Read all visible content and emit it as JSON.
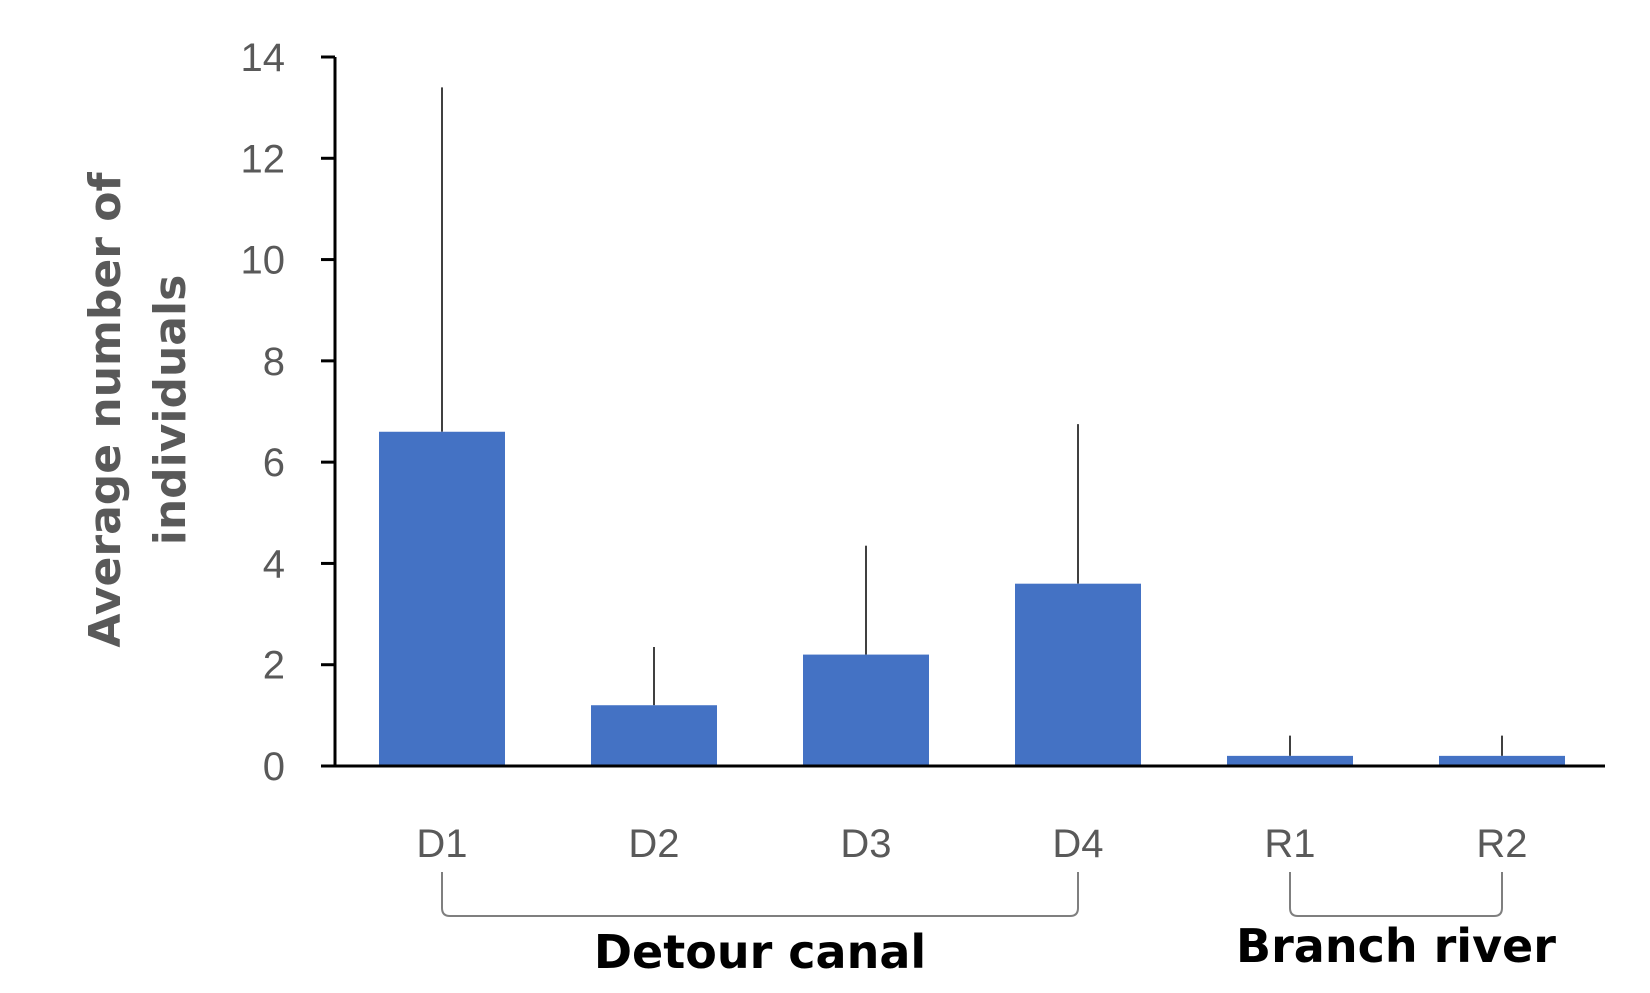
{
  "chart_data": {
    "type": "bar",
    "title": "",
    "xlabel": "",
    "ylabel_lines": [
      "Average number of",
      "individuals"
    ],
    "categories": [
      "D1",
      "D2",
      "D3",
      "D4",
      "R1",
      "R2"
    ],
    "values": [
      6.6,
      1.2,
      2.2,
      3.6,
      0.2,
      0.2
    ],
    "error_upper": [
      13.4,
      2.35,
      4.35,
      6.75,
      0.6,
      0.6
    ],
    "ylim": [
      0,
      14
    ],
    "yticks": [
      0,
      2,
      4,
      6,
      8,
      10,
      12,
      14
    ],
    "grid": false,
    "legend": "none",
    "bar_color": "#4472C4",
    "groups": [
      {
        "label": "Detour canal",
        "from": "D1",
        "to": "D4"
      },
      {
        "label": "Branch river",
        "from": "R1",
        "to": "R2"
      }
    ]
  }
}
